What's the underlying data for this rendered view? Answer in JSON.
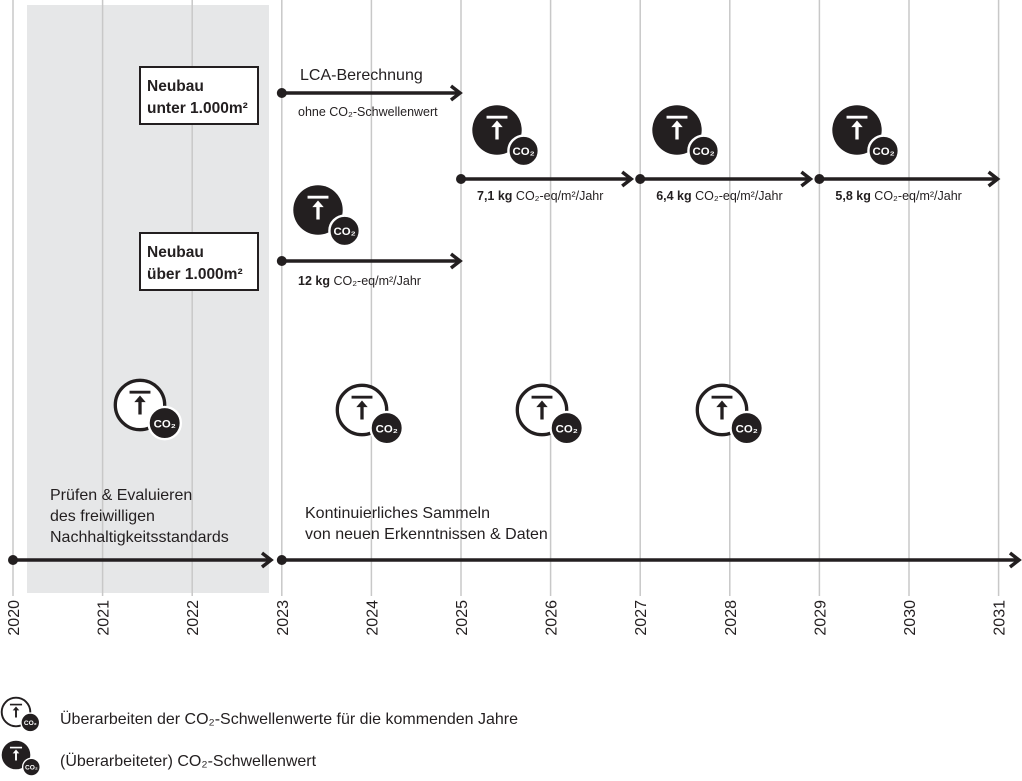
{
  "years": [
    "2020",
    "2021",
    "2022",
    "2023",
    "2024",
    "2025",
    "2026",
    "2027",
    "2028",
    "2029",
    "2030",
    "2031"
  ],
  "colors": {
    "shade": "#e6e7e8",
    "grid": "#c8c8c8",
    "ink": "#231f20"
  },
  "phase": {
    "label_lines": [
      "Prüfen & Evaluieren",
      "des freiwilligen",
      "Nachhaltigkeitsstandards"
    ],
    "from": "2020",
    "to": "2023"
  },
  "collect": {
    "label_lines": [
      "Kontinuierliches Sammeln",
      "von neuen Erkenntnissen & Daten"
    ],
    "from": "2023",
    "to": "2031"
  },
  "boxes": [
    {
      "lines": [
        "Neubau",
        "unter 1.000m²"
      ]
    },
    {
      "lines": [
        "Neubau",
        "über 1.000m²"
      ]
    }
  ],
  "lca": {
    "title": "LCA-Berechnung",
    "subtitle": "ohne CO₂-Schwellenwert",
    "from": "2023",
    "to": "2025"
  },
  "small_threshold": [
    {
      "from": "2025",
      "to": "2027",
      "value_bold": "7,1 kg",
      "unit": " CO₂-eq/m²/Jahr"
    },
    {
      "from": "2027",
      "to": "2029",
      "value_bold": "6,4 kg",
      "unit": " CO₂-eq/m²/Jahr"
    },
    {
      "from": "2029",
      "to": "2031",
      "value_bold": "5,8 kg",
      "unit": " CO₂-eq/m²/Jahr"
    }
  ],
  "large_threshold": {
    "from": "2023",
    "to": "2025",
    "value_bold": "12 kg",
    "unit": " CO₂-eq/m²/Jahr"
  },
  "icon_text": "CO₂",
  "legend": [
    {
      "icon": "revise-threshold-icon",
      "label": "Überarbeiten der CO₂-Schwellenwerte für die kommenden Jahre"
    },
    {
      "icon": "threshold-icon",
      "label": "(Überarbeiteter) CO₂-Schwellenwert"
    }
  ]
}
